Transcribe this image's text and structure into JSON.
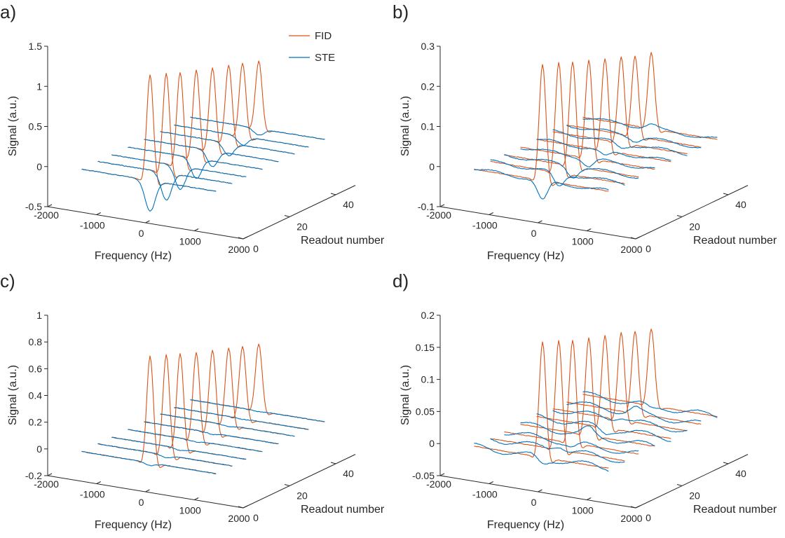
{
  "figure": {
    "legend": [
      {
        "label": "FID",
        "color": "#D95319"
      },
      {
        "label": "STE",
        "color": "#0072BD"
      }
    ]
  },
  "chart_data": [
    {
      "type": "line",
      "panel_label": "a)",
      "title": "",
      "xlabel": "Frequency (Hz)",
      "ylabel": "Readout number",
      "zlabel": "Signal (a.u.)",
      "xlim": [
        -2000,
        2000
      ],
      "ylim": [
        0,
        50
      ],
      "zlim": [
        -0.5,
        1.5
      ],
      "xticks": [
        -2000,
        -1000,
        0,
        1000,
        2000
      ],
      "xtick_labels": [
        "-2000",
        "-1000",
        "0",
        "1000",
        "2000"
      ],
      "yticks": [
        0,
        20,
        40
      ],
      "ytick_labels": [
        "0",
        "20",
        "40"
      ],
      "zticks": [
        -0.5,
        0,
        0.5,
        1,
        1.5
      ],
      "ztick_labels": [
        "-0.5",
        "0",
        "0.5",
        "1",
        "1.5"
      ],
      "legend": "top-right",
      "grid": false,
      "frequency_range_of_traces": [
        -1400,
        1350
      ],
      "readouts": [
        2,
        9,
        15,
        22,
        29,
        36,
        42,
        49
      ],
      "series": [
        {
          "name": "FID",
          "peak_frequency": 0,
          "peak_values": [
            1.32,
            1.24,
            1.17,
            1.1,
            1.03,
            0.97,
            0.91,
            0.84
          ]
        },
        {
          "name": "STE",
          "peak_frequency": 0,
          "peak_values": [
            -0.38,
            -0.34,
            -0.29,
            -0.25,
            -0.2,
            -0.16,
            -0.11,
            -0.08
          ]
        }
      ]
    },
    {
      "type": "line",
      "panel_label": "b)",
      "title": "",
      "xlabel": "Frequency (Hz)",
      "ylabel": "Readout number",
      "zlabel": "Signal (a.u.)",
      "xlim": [
        -2000,
        2000
      ],
      "ylim": [
        0,
        50
      ],
      "zlim": [
        -0.1,
        0.3
      ],
      "xticks": [
        -2000,
        -1000,
        0,
        1000,
        2000
      ],
      "xtick_labels": [
        "-2000",
        "-1000",
        "0",
        "1000",
        "2000"
      ],
      "yticks": [
        0,
        20,
        40
      ],
      "ytick_labels": [
        "0",
        "20",
        "40"
      ],
      "zticks": [
        -0.1,
        0,
        0.1,
        0.2,
        0.3
      ],
      "ztick_labels": [
        "-0.1",
        "0",
        "0.1",
        "0.2",
        "0.3"
      ],
      "grid": false,
      "frequency_range_of_traces": [
        -1400,
        1350
      ],
      "readouts": [
        2,
        9,
        15,
        22,
        29,
        36,
        42,
        49
      ],
      "series": [
        {
          "name": "FID",
          "peak_frequency": 0,
          "peak_values": [
            0.29,
            0.275,
            0.26,
            0.245,
            0.23,
            0.215,
            0.2,
            0.19
          ]
        },
        {
          "name": "STE",
          "peak_frequency": 0,
          "peak_values": [
            -0.05,
            -0.035,
            -0.025,
            -0.02,
            -0.015,
            -0.012,
            -0.01,
            0.01
          ]
        }
      ]
    },
    {
      "type": "line",
      "panel_label": "c)",
      "title": "",
      "xlabel": "Frequency (Hz)",
      "ylabel": "Readout number",
      "zlabel": "Signal (a.u.)",
      "xlim": [
        -2000,
        2000
      ],
      "ylim": [
        0,
        50
      ],
      "zlim": [
        -0.2,
        1
      ],
      "xticks": [
        -2000,
        -1000,
        0,
        1000,
        2000
      ],
      "xtick_labels": [
        "-2000",
        "-1000",
        "0",
        "1000",
        "2000"
      ],
      "yticks": [
        0,
        20,
        40
      ],
      "ytick_labels": [
        "0",
        "20",
        "40"
      ],
      "zticks": [
        -0.2,
        0,
        0.2,
        0.4,
        0.6,
        0.8,
        1
      ],
      "ztick_labels": [
        "-0.2",
        "0",
        "0.2",
        "0.4",
        "0.6",
        "0.8",
        "1"
      ],
      "grid": false,
      "frequency_range_of_traces": [
        -1400,
        1350
      ],
      "readouts": [
        2,
        9,
        15,
        22,
        29,
        36,
        42,
        49
      ],
      "series": [
        {
          "name": "FID",
          "peak_frequency": 0,
          "peak_values": [
            0.8,
            0.75,
            0.71,
            0.66,
            0.62,
            0.58,
            0.54,
            0.5
          ]
        },
        {
          "name": "STE",
          "peak_frequency": 0,
          "peak_values": [
            -0.02,
            -0.02,
            -0.015,
            -0.01,
            -0.01,
            -0.01,
            -0.005,
            -0.005
          ]
        }
      ]
    },
    {
      "type": "line",
      "panel_label": "d)",
      "title": "",
      "xlabel": "Frequency (Hz)",
      "ylabel": "Readout number",
      "zlabel": "Signal (a.u.)",
      "xlim": [
        -2000,
        2000
      ],
      "ylim": [
        0,
        50
      ],
      "zlim": [
        -0.05,
        0.2
      ],
      "xticks": [
        -2000,
        -1000,
        0,
        1000,
        2000
      ],
      "xtick_labels": [
        "-2000",
        "-1000",
        "0",
        "1000",
        "2000"
      ],
      "yticks": [
        0,
        20,
        40
      ],
      "ytick_labels": [
        "0",
        "20",
        "40"
      ],
      "zticks": [
        -0.05,
        0,
        0.05,
        0.1,
        0.15,
        0.2
      ],
      "ztick_labels": [
        "-0.05",
        "0",
        "0.05",
        "0.1",
        "0.15",
        "0.2"
      ],
      "grid": false,
      "frequency_range_of_traces": [
        -1400,
        1350
      ],
      "readouts": [
        2,
        9,
        15,
        22,
        29,
        36,
        42,
        49
      ],
      "series": [
        {
          "name": "FID",
          "peak_frequency": 0,
          "peak_values": [
            0.18,
            0.17,
            0.16,
            0.152,
            0.144,
            0.136,
            0.128,
            0.12
          ]
        },
        {
          "name": "STE",
          "peak_frequency": 0,
          "peak_values": [
            -0.01,
            0.008,
            -0.006,
            0.01,
            -0.008,
            0.006,
            0.008,
            -0.006
          ]
        }
      ]
    }
  ]
}
